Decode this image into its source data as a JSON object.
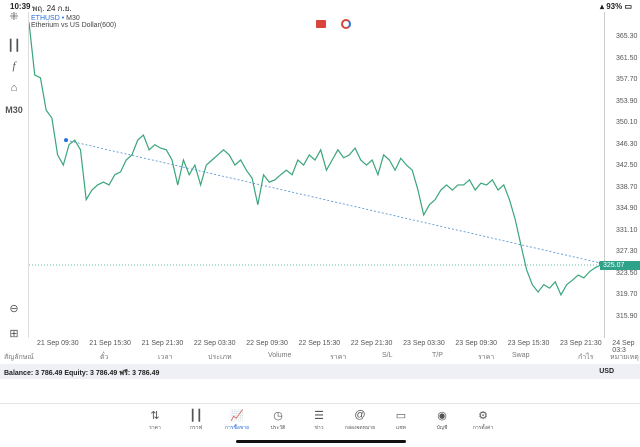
{
  "status": {
    "time": "10:39",
    "date": "พฤ. 24 ก.ย.",
    "battery": "93%"
  },
  "toolbar": {
    "timeframe": "M30",
    "icons": [
      "crosshair-icon",
      "candlestick-icon",
      "function-icon",
      "objects-icon",
      "zoom-out-icon",
      "add-icon"
    ]
  },
  "chart": {
    "symbol": "ETHUSD",
    "timeframe": "M30",
    "description": "Etherium vs US Dollar(600)",
    "current_price": "325.07",
    "price_labels": [
      "365.30",
      "361.50",
      "357.70",
      "353.90",
      "350.10",
      "346.30",
      "342.50",
      "338.70",
      "334.90",
      "331.10",
      "327.30",
      "323.50",
      "319.70",
      "315.90"
    ],
    "time_labels": [
      "21 Sep 09:30",
      "21 Sep 15:30",
      "21 Sep 21:30",
      "22 Sep 03:30",
      "22 Sep 09:30",
      "22 Sep 15:30",
      "22 Sep 21:30",
      "23 Sep 03:30",
      "23 Sep 09:30",
      "23 Sep 15:30",
      "23 Sep 21:30",
      "24 Sep 03:3"
    ],
    "line_color": "#3aa57a",
    "trend_color": "#4a8fd0"
  },
  "chart_data": {
    "type": "line",
    "ylim": [
      313,
      368
    ],
    "values": [
      367.9,
      358.6,
      358.1,
      352.4,
      351.0,
      344.5,
      342.7,
      346.3,
      347.1,
      345.4,
      336.6,
      338.3,
      339.2,
      339.7,
      339.2,
      341.0,
      341.5,
      343.6,
      344.5,
      347.1,
      348.0,
      345.4,
      346.3,
      345.7,
      345.4,
      343.6,
      339.2,
      343.6,
      341.0,
      342.7,
      339.2,
      342.7,
      343.6,
      344.5,
      345.4,
      344.5,
      342.7,
      343.6,
      341.8,
      340.4,
      335.7,
      341.0,
      339.7,
      340.1,
      341.0,
      341.8,
      341.0,
      343.6,
      342.7,
      344.5,
      343.6,
      345.4,
      341.8,
      343.6,
      345.4,
      344.0,
      344.5,
      345.7,
      343.6,
      342.7,
      343.6,
      341.0,
      344.5,
      343.6,
      341.8,
      343.9,
      342.7,
      341.8,
      338.3,
      333.9,
      335.7,
      336.6,
      338.3,
      339.2,
      338.3,
      339.2,
      339.2,
      340.1,
      338.3,
      339.5,
      339.2,
      340.1,
      338.3,
      339.2,
      336.6,
      333.1,
      328.6,
      324.2,
      321.6,
      320.3,
      321.6,
      321.0,
      322.1,
      319.8,
      321.6,
      322.4,
      323.3,
      322.8,
      323.9,
      324.6,
      325.1
    ],
    "trendline": {
      "start": 347.1,
      "end": 325.4
    }
  },
  "table": {
    "headers": [
      "สัญลักษณ์",
      "ตั๋ว",
      "เวลา",
      "ประเภท",
      "Volume",
      "ราคา",
      "S/L",
      "T/P",
      "ราคา",
      "Swap",
      "กำไร",
      "หมายเหตุ"
    ]
  },
  "balance": {
    "text": "Balance: 3 786.49 Equity: 3 786.49 ฟรี: 3 786.49",
    "currency": "USD"
  },
  "nav": [
    {
      "label": "ราคา",
      "icon": "⇅"
    },
    {
      "label": "กราฟ",
      "icon": "┃┃"
    },
    {
      "label": "การซื้อขาย",
      "icon": "📈"
    },
    {
      "label": "ประวัติ",
      "icon": "◷"
    },
    {
      "label": "ข่าว",
      "icon": "☰"
    },
    {
      "label": "กล่องจดหมาย",
      "icon": "@"
    },
    {
      "label": "แชท",
      "icon": "▭"
    },
    {
      "label": "บัญชี",
      "icon": "◉"
    },
    {
      "label": "การตั้งค่า",
      "icon": "⚙"
    }
  ]
}
